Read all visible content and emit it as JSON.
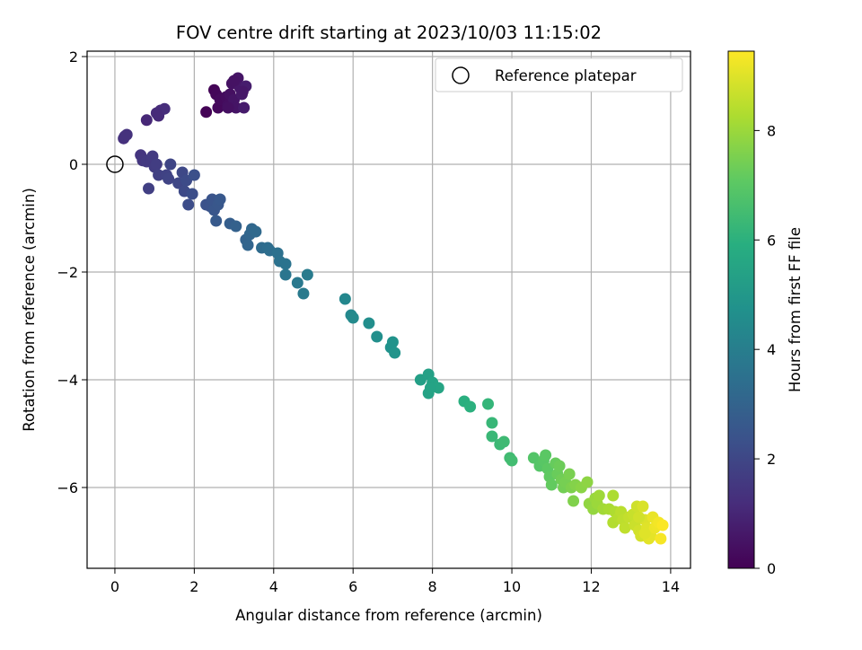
{
  "chart_data": {
    "type": "scatter",
    "title": "FOV centre drift starting at 2023/10/03 11:15:02",
    "xlabel": "Angular distance from reference (arcmin)",
    "ylabel": "Rotation from reference (arcmin)",
    "xlim": [
      -0.7,
      14.5
    ],
    "ylim": [
      -7.5,
      2.1
    ],
    "x_ticks": [
      0,
      2,
      4,
      6,
      8,
      10,
      12,
      14
    ],
    "y_ticks": [
      2,
      0,
      -2,
      -4,
      -6
    ],
    "grid": true,
    "legend_position": "top-right",
    "legend": [
      {
        "label": "Reference platepar",
        "marker": "open-circle"
      }
    ],
    "reference_point": {
      "x": 0,
      "y": 0
    },
    "colorbar": {
      "label": "Hours from first FF file",
      "range": [
        0,
        9.45
      ],
      "ticks": [
        0,
        2,
        4,
        6,
        8
      ],
      "colormap": "viridis"
    },
    "points": [
      {
        "x": 2.3,
        "y": 0.97,
        "c": 0.05
      },
      {
        "x": 2.5,
        "y": 1.38,
        "c": 0.1
      },
      {
        "x": 2.55,
        "y": 1.3,
        "c": 0.15
      },
      {
        "x": 2.6,
        "y": 1.05,
        "c": 0.2
      },
      {
        "x": 2.65,
        "y": 1.2,
        "c": 0.25
      },
      {
        "x": 2.8,
        "y": 1.25,
        "c": 0.3
      },
      {
        "x": 2.85,
        "y": 1.1,
        "c": 0.35
      },
      {
        "x": 2.9,
        "y": 1.3,
        "c": 0.4
      },
      {
        "x": 2.95,
        "y": 1.5,
        "c": 0.45
      },
      {
        "x": 3.0,
        "y": 1.2,
        "c": 0.5
      },
      {
        "x": 3.05,
        "y": 1.05,
        "c": 0.5
      },
      {
        "x": 3.1,
        "y": 1.6,
        "c": 0.55
      },
      {
        "x": 3.15,
        "y": 1.42,
        "c": 0.6
      },
      {
        "x": 3.2,
        "y": 1.3,
        "c": 0.65
      },
      {
        "x": 3.25,
        "y": 1.05,
        "c": 0.7
      },
      {
        "x": 3.3,
        "y": 1.45,
        "c": 0.75
      },
      {
        "x": 3.0,
        "y": 1.55,
        "c": 0.45
      },
      {
        "x": 2.85,
        "y": 1.05,
        "c": 0.4
      },
      {
        "x": 3.22,
        "y": 1.35,
        "c": 0.6
      },
      {
        "x": 0.8,
        "y": 0.82,
        "c": 1.05
      },
      {
        "x": 1.1,
        "y": 0.9,
        "c": 1.1
      },
      {
        "x": 1.15,
        "y": 1.0,
        "c": 1.15
      },
      {
        "x": 1.25,
        "y": 1.03,
        "c": 1.2
      },
      {
        "x": 1.05,
        "y": 0.95,
        "c": 1.12
      },
      {
        "x": 0.22,
        "y": 0.48,
        "c": 1.3
      },
      {
        "x": 0.25,
        "y": 0.52,
        "c": 1.35
      },
      {
        "x": 0.3,
        "y": 0.55,
        "c": 1.35
      },
      {
        "x": 0.65,
        "y": 0.17,
        "c": 1.45
      },
      {
        "x": 0.7,
        "y": 0.07,
        "c": 1.5
      },
      {
        "x": 0.8,
        "y": 0.05,
        "c": 1.55
      },
      {
        "x": 0.9,
        "y": 0.1,
        "c": 1.55
      },
      {
        "x": 0.95,
        "y": 0.15,
        "c": 1.6
      },
      {
        "x": 1.0,
        "y": -0.05,
        "c": 1.65
      },
      {
        "x": 1.05,
        "y": 0.0,
        "c": 1.7
      },
      {
        "x": 0.85,
        "y": -0.45,
        "c": 1.75
      },
      {
        "x": 1.1,
        "y": -0.2,
        "c": 1.8
      },
      {
        "x": 1.3,
        "y": -0.2,
        "c": 1.85
      },
      {
        "x": 1.35,
        "y": -0.27,
        "c": 1.9
      },
      {
        "x": 1.4,
        "y": 0.0,
        "c": 1.95
      },
      {
        "x": 1.6,
        "y": -0.35,
        "c": 2.0
      },
      {
        "x": 1.7,
        "y": -0.15,
        "c": 2.05
      },
      {
        "x": 1.75,
        "y": -0.5,
        "c": 2.1
      },
      {
        "x": 1.8,
        "y": -0.3,
        "c": 2.15
      },
      {
        "x": 1.85,
        "y": -0.75,
        "c": 2.2
      },
      {
        "x": 1.95,
        "y": -0.55,
        "c": 2.25
      },
      {
        "x": 2.0,
        "y": -0.2,
        "c": 2.3
      },
      {
        "x": 2.3,
        "y": -0.75,
        "c": 2.35
      },
      {
        "x": 2.4,
        "y": -0.78,
        "c": 2.4
      },
      {
        "x": 2.45,
        "y": -0.65,
        "c": 2.45
      },
      {
        "x": 2.5,
        "y": -0.85,
        "c": 2.5
      },
      {
        "x": 2.6,
        "y": -0.75,
        "c": 2.55
      },
      {
        "x": 2.65,
        "y": -0.65,
        "c": 2.6
      },
      {
        "x": 2.55,
        "y": -1.05,
        "c": 2.65
      },
      {
        "x": 2.9,
        "y": -1.1,
        "c": 2.8
      },
      {
        "x": 3.05,
        "y": -1.15,
        "c": 2.9
      },
      {
        "x": 3.3,
        "y": -1.4,
        "c": 3.0
      },
      {
        "x": 3.35,
        "y": -1.5,
        "c": 3.05
      },
      {
        "x": 3.4,
        "y": -1.3,
        "c": 3.1
      },
      {
        "x": 3.45,
        "y": -1.2,
        "c": 3.15
      },
      {
        "x": 3.55,
        "y": -1.25,
        "c": 3.2
      },
      {
        "x": 3.7,
        "y": -1.55,
        "c": 3.3
      },
      {
        "x": 3.85,
        "y": -1.55,
        "c": 3.35
      },
      {
        "x": 3.9,
        "y": -1.6,
        "c": 3.4
      },
      {
        "x": 4.1,
        "y": -1.65,
        "c": 3.5
      },
      {
        "x": 4.15,
        "y": -1.8,
        "c": 3.55
      },
      {
        "x": 4.3,
        "y": -1.85,
        "c": 3.6
      },
      {
        "x": 4.3,
        "y": -2.05,
        "c": 3.65
      },
      {
        "x": 4.6,
        "y": -2.2,
        "c": 3.8
      },
      {
        "x": 4.75,
        "y": -2.4,
        "c": 3.85
      },
      {
        "x": 4.85,
        "y": -2.05,
        "c": 3.9
      },
      {
        "x": 5.8,
        "y": -2.5,
        "c": 4.35
      },
      {
        "x": 5.95,
        "y": -2.8,
        "c": 4.4
      },
      {
        "x": 6.0,
        "y": -2.85,
        "c": 4.45
      },
      {
        "x": 6.4,
        "y": -2.95,
        "c": 4.6
      },
      {
        "x": 6.6,
        "y": -3.2,
        "c": 4.65
      },
      {
        "x": 6.95,
        "y": -3.4,
        "c": 4.75
      },
      {
        "x": 7.0,
        "y": -3.3,
        "c": 4.8
      },
      {
        "x": 7.05,
        "y": -3.5,
        "c": 4.85
      },
      {
        "x": 7.7,
        "y": -4.0,
        "c": 5.3
      },
      {
        "x": 7.9,
        "y": -3.9,
        "c": 5.35
      },
      {
        "x": 7.9,
        "y": -4.25,
        "c": 5.4
      },
      {
        "x": 8.0,
        "y": -4.05,
        "c": 5.45
      },
      {
        "x": 8.15,
        "y": -4.15,
        "c": 5.5
      },
      {
        "x": 7.95,
        "y": -4.15,
        "c": 5.45
      },
      {
        "x": 8.8,
        "y": -4.4,
        "c": 5.95
      },
      {
        "x": 8.95,
        "y": -4.5,
        "c": 6.0
      },
      {
        "x": 9.4,
        "y": -4.45,
        "c": 6.2
      },
      {
        "x": 9.5,
        "y": -4.8,
        "c": 6.25
      },
      {
        "x": 9.5,
        "y": -5.05,
        "c": 6.3
      },
      {
        "x": 9.7,
        "y": -5.2,
        "c": 6.35
      },
      {
        "x": 9.8,
        "y": -5.15,
        "c": 6.4
      },
      {
        "x": 9.95,
        "y": -5.45,
        "c": 6.45
      },
      {
        "x": 10.0,
        "y": -5.5,
        "c": 6.5
      },
      {
        "x": 10.55,
        "y": -5.45,
        "c": 6.85
      },
      {
        "x": 10.7,
        "y": -5.6,
        "c": 6.9
      },
      {
        "x": 10.8,
        "y": -5.5,
        "c": 6.95
      },
      {
        "x": 10.85,
        "y": -5.4,
        "c": 7.0
      },
      {
        "x": 10.9,
        "y": -5.65,
        "c": 7.05
      },
      {
        "x": 10.95,
        "y": -5.8,
        "c": 7.1
      },
      {
        "x": 11.0,
        "y": -5.95,
        "c": 7.15
      },
      {
        "x": 11.1,
        "y": -5.55,
        "c": 7.2
      },
      {
        "x": 11.15,
        "y": -5.75,
        "c": 7.25
      },
      {
        "x": 11.2,
        "y": -5.6,
        "c": 7.3
      },
      {
        "x": 11.25,
        "y": -5.85,
        "c": 7.35
      },
      {
        "x": 11.3,
        "y": -6.0,
        "c": 7.4
      },
      {
        "x": 11.35,
        "y": -5.9,
        "c": 7.45
      },
      {
        "x": 11.45,
        "y": -5.75,
        "c": 7.5
      },
      {
        "x": 11.5,
        "y": -6.0,
        "c": 7.55
      },
      {
        "x": 11.55,
        "y": -6.25,
        "c": 7.6
      },
      {
        "x": 11.6,
        "y": -5.95,
        "c": 7.65
      },
      {
        "x": 11.75,
        "y": -6.0,
        "c": 7.75
      },
      {
        "x": 11.9,
        "y": -5.9,
        "c": 7.8
      },
      {
        "x": 11.95,
        "y": -6.3,
        "c": 7.85
      },
      {
        "x": 12.05,
        "y": -6.4,
        "c": 7.9
      },
      {
        "x": 12.1,
        "y": -6.2,
        "c": 7.95
      },
      {
        "x": 12.15,
        "y": -6.3,
        "c": 8.0
      },
      {
        "x": 12.2,
        "y": -6.15,
        "c": 8.05
      },
      {
        "x": 12.3,
        "y": -6.4,
        "c": 8.1
      },
      {
        "x": 12.45,
        "y": -6.4,
        "c": 8.2
      },
      {
        "x": 12.55,
        "y": -6.15,
        "c": 8.25
      },
      {
        "x": 12.6,
        "y": -6.45,
        "c": 8.3
      },
      {
        "x": 12.55,
        "y": -6.65,
        "c": 8.35
      },
      {
        "x": 12.7,
        "y": -6.55,
        "c": 8.4
      },
      {
        "x": 12.75,
        "y": -6.45,
        "c": 8.45
      },
      {
        "x": 12.8,
        "y": -6.6,
        "c": 8.5
      },
      {
        "x": 12.85,
        "y": -6.75,
        "c": 8.55
      },
      {
        "x": 12.95,
        "y": -6.55,
        "c": 8.6
      },
      {
        "x": 13.05,
        "y": -6.5,
        "c": 8.65
      },
      {
        "x": 13.1,
        "y": -6.7,
        "c": 8.7
      },
      {
        "x": 13.15,
        "y": -6.35,
        "c": 8.75
      },
      {
        "x": 13.2,
        "y": -6.8,
        "c": 8.8
      },
      {
        "x": 13.25,
        "y": -6.9,
        "c": 8.85
      },
      {
        "x": 13.3,
        "y": -6.35,
        "c": 8.9
      },
      {
        "x": 13.35,
        "y": -6.6,
        "c": 8.95
      },
      {
        "x": 13.4,
        "y": -6.75,
        "c": 9.0
      },
      {
        "x": 13.45,
        "y": -6.95,
        "c": 9.05
      },
      {
        "x": 13.5,
        "y": -6.9,
        "c": 9.1
      },
      {
        "x": 13.55,
        "y": -6.55,
        "c": 9.15
      },
      {
        "x": 13.6,
        "y": -6.75,
        "c": 9.2
      },
      {
        "x": 13.65,
        "y": -6.7,
        "c": 9.25
      },
      {
        "x": 13.7,
        "y": -6.65,
        "c": 9.3
      },
      {
        "x": 13.75,
        "y": -6.95,
        "c": 9.35
      },
      {
        "x": 13.8,
        "y": -6.7,
        "c": 9.4
      },
      {
        "x": 13.2,
        "y": -6.55,
        "c": 8.8
      },
      {
        "x": 13.35,
        "y": -6.85,
        "c": 9.0
      }
    ]
  }
}
